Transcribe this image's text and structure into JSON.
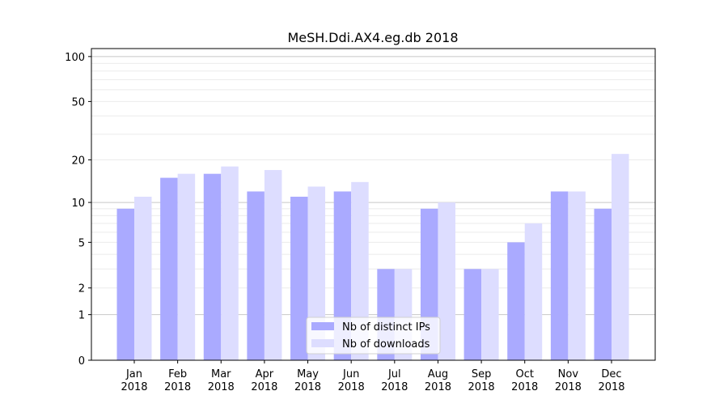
{
  "chart_data": {
    "type": "bar",
    "title": "MeSH.Ddi.AX4.eg.db 2018",
    "xlabel": "",
    "ylabel": "",
    "yscale": "log(1+y)",
    "ylim": [
      0,
      113
    ],
    "yticks": [
      0,
      1,
      2,
      5,
      10,
      20,
      50,
      100
    ],
    "grid": true,
    "legend_position": "bottom-center",
    "categories": [
      "Jan\n2018",
      "Feb\n2018",
      "Mar\n2018",
      "Apr\n2018",
      "May\n2018",
      "Jun\n2018",
      "Jul\n2018",
      "Aug\n2018",
      "Sep\n2018",
      "Oct\n2018",
      "Nov\n2018",
      "Dec\n2018"
    ],
    "series": [
      {
        "name": "Nb of distinct IPs",
        "color": "#aaaaff",
        "values": [
          9,
          15,
          16,
          12,
          11,
          12,
          3,
          9,
          3,
          5,
          12,
          9
        ]
      },
      {
        "name": "Nb of downloads",
        "color": "#ddddff",
        "values": [
          11,
          16,
          18,
          17,
          13,
          14,
          3,
          10,
          3,
          7,
          12,
          22
        ]
      }
    ]
  }
}
